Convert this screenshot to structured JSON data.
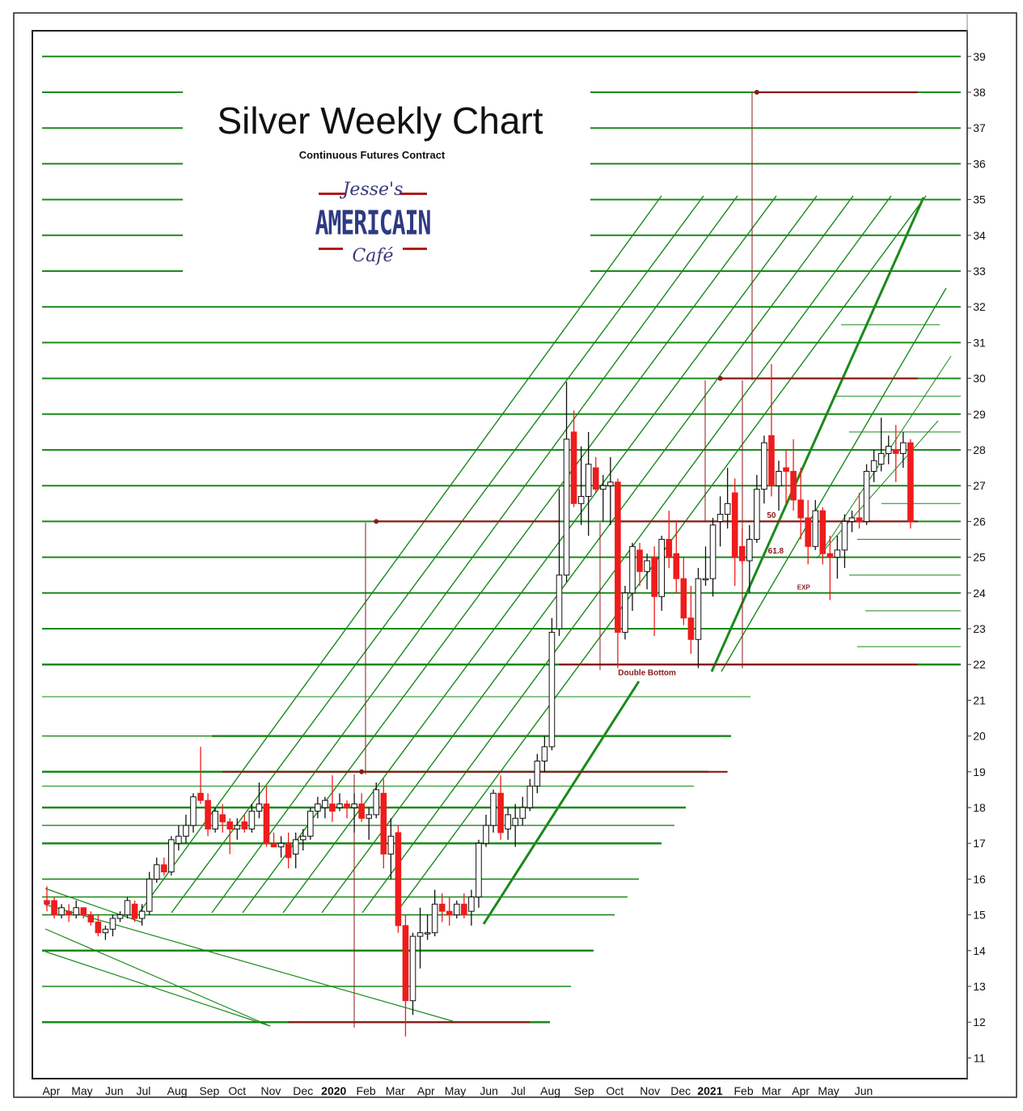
{
  "header": {
    "title": "Silver Weekly Chart",
    "subtitle": "Continuous Futures Contract"
  },
  "logo": {
    "line1": "Jesse's",
    "line2": "AMERICAIN",
    "line3": "Café"
  },
  "colors": {
    "up_candle": "#ffffff",
    "down_candle": "#ee1c1c",
    "trend_lines": "#1a8a1a",
    "key_levels": "#8b1a1a"
  },
  "chart_data": {
    "type": "candlestick",
    "title": "Silver Weekly Chart",
    "subtitle": "Continuous Futures Contract",
    "ylim": [
      10.6,
      39.6
    ],
    "y_ticks": [
      11,
      12,
      13,
      14,
      15,
      16,
      17,
      18,
      19,
      20,
      21,
      22,
      23,
      24,
      25,
      26,
      27,
      28,
      29,
      30,
      31,
      32,
      33,
      34,
      35,
      36,
      37,
      38,
      39
    ],
    "x_tick_labels": [
      {
        "label": "Apr",
        "week": 0.6
      },
      {
        "label": "May",
        "week": 4.8
      },
      {
        "label": "Jun",
        "week": 9.2
      },
      {
        "label": "Jul",
        "week": 13.2
      },
      {
        "label": "Aug",
        "week": 17.8
      },
      {
        "label": "Sep",
        "week": 22.2
      },
      {
        "label": "Oct",
        "week": 26.0
      },
      {
        "label": "Nov",
        "week": 30.6
      },
      {
        "label": "Dec",
        "week": 35.0
      },
      {
        "label": "2020",
        "week": 39.2,
        "bold": true
      },
      {
        "label": "Feb",
        "week": 43.6
      },
      {
        "label": "Mar",
        "week": 47.6
      },
      {
        "label": "Apr",
        "week": 51.8
      },
      {
        "label": "May",
        "week": 55.8
      },
      {
        "label": "Jun",
        "week": 60.4
      },
      {
        "label": "Jul",
        "week": 64.4
      },
      {
        "label": "Aug",
        "week": 68.8
      },
      {
        "label": "Sep",
        "week": 73.4
      },
      {
        "label": "Oct",
        "week": 77.6
      },
      {
        "label": "Nov",
        "week": 82.4
      },
      {
        "label": "Dec",
        "week": 86.6
      },
      {
        "label": "2021",
        "week": 90.6,
        "bold": true
      },
      {
        "label": "Feb",
        "week": 95.2
      },
      {
        "label": "Mar",
        "week": 99.0
      },
      {
        "label": "Apr",
        "week": 103.0
      },
      {
        "label": "May",
        "week": 106.8
      },
      {
        "label": "Jun",
        "week": 111.6
      }
    ],
    "candles": [
      {
        "o": 15.4,
        "h": 15.8,
        "l": 15.1,
        "c": 15.3
      },
      {
        "o": 15.4,
        "h": 15.5,
        "l": 14.9,
        "c": 15.0
      },
      {
        "o": 15.0,
        "h": 15.3,
        "l": 14.9,
        "c": 15.2
      },
      {
        "o": 15.1,
        "h": 15.3,
        "l": 14.8,
        "c": 15.0
      },
      {
        "o": 15.0,
        "h": 15.4,
        "l": 14.9,
        "c": 15.2
      },
      {
        "o": 15.2,
        "h": 15.2,
        "l": 14.9,
        "c": 15.0
      },
      {
        "o": 15.0,
        "h": 15.1,
        "l": 14.7,
        "c": 14.8
      },
      {
        "o": 14.8,
        "h": 15.0,
        "l": 14.4,
        "c": 14.5
      },
      {
        "o": 14.5,
        "h": 14.7,
        "l": 14.3,
        "c": 14.6
      },
      {
        "o": 14.6,
        "h": 15.0,
        "l": 14.4,
        "c": 14.9
      },
      {
        "o": 14.9,
        "h": 15.1,
        "l": 14.8,
        "c": 15.0
      },
      {
        "o": 15.0,
        "h": 15.5,
        "l": 14.9,
        "c": 15.4
      },
      {
        "o": 15.3,
        "h": 15.4,
        "l": 14.8,
        "c": 14.9
      },
      {
        "o": 14.9,
        "h": 15.3,
        "l": 14.7,
        "c": 15.1
      },
      {
        "o": 15.1,
        "h": 16.2,
        "l": 15.0,
        "c": 16.0
      },
      {
        "o": 16.0,
        "h": 16.6,
        "l": 15.9,
        "c": 16.4
      },
      {
        "o": 16.4,
        "h": 16.6,
        "l": 16.1,
        "c": 16.2
      },
      {
        "o": 16.2,
        "h": 17.2,
        "l": 16.1,
        "c": 17.1
      },
      {
        "o": 17.0,
        "h": 17.5,
        "l": 16.8,
        "c": 17.2
      },
      {
        "o": 17.2,
        "h": 17.8,
        "l": 17.0,
        "c": 17.5
      },
      {
        "o": 17.5,
        "h": 18.4,
        "l": 17.3,
        "c": 18.3
      },
      {
        "o": 18.4,
        "h": 19.7,
        "l": 18.1,
        "c": 18.2
      },
      {
        "o": 18.2,
        "h": 18.4,
        "l": 17.2,
        "c": 17.4
      },
      {
        "o": 17.4,
        "h": 18.0,
        "l": 17.3,
        "c": 17.9
      },
      {
        "o": 17.8,
        "h": 18.1,
        "l": 17.3,
        "c": 17.6
      },
      {
        "o": 17.6,
        "h": 17.7,
        "l": 16.7,
        "c": 17.4
      },
      {
        "o": 17.4,
        "h": 17.7,
        "l": 17.1,
        "c": 17.5
      },
      {
        "o": 17.6,
        "h": 17.8,
        "l": 17.3,
        "c": 17.4
      },
      {
        "o": 17.4,
        "h": 18.1,
        "l": 17.3,
        "c": 17.9
      },
      {
        "o": 17.9,
        "h": 18.7,
        "l": 17.7,
        "c": 18.1
      },
      {
        "o": 18.1,
        "h": 18.6,
        "l": 16.9,
        "c": 17.0
      },
      {
        "o": 17.0,
        "h": 17.3,
        "l": 16.9,
        "c": 16.9
      },
      {
        "o": 16.9,
        "h": 17.2,
        "l": 16.6,
        "c": 17.0
      },
      {
        "o": 17.0,
        "h": 17.3,
        "l": 16.3,
        "c": 16.6
      },
      {
        "o": 16.7,
        "h": 17.3,
        "l": 16.3,
        "c": 17.1
      },
      {
        "o": 17.1,
        "h": 17.4,
        "l": 16.8,
        "c": 17.2
      },
      {
        "o": 17.2,
        "h": 18.0,
        "l": 17.1,
        "c": 17.9
      },
      {
        "o": 17.9,
        "h": 18.3,
        "l": 17.7,
        "c": 18.1
      },
      {
        "o": 18.0,
        "h": 18.3,
        "l": 17.7,
        "c": 18.2
      },
      {
        "o": 18.1,
        "h": 18.9,
        "l": 17.6,
        "c": 17.9
      },
      {
        "o": 18.0,
        "h": 18.4,
        "l": 17.9,
        "c": 18.1
      },
      {
        "o": 18.1,
        "h": 18.2,
        "l": 17.7,
        "c": 18.0
      },
      {
        "o": 18.0,
        "h": 18.4,
        "l": 17.3,
        "c": 18.1
      },
      {
        "o": 18.1,
        "h": 18.4,
        "l": 17.6,
        "c": 17.7
      },
      {
        "o": 17.7,
        "h": 18.0,
        "l": 17.1,
        "c": 17.8
      },
      {
        "o": 17.8,
        "h": 18.7,
        "l": 17.7,
        "c": 18.5
      },
      {
        "o": 18.4,
        "h": 18.8,
        "l": 16.3,
        "c": 16.7
      },
      {
        "o": 16.7,
        "h": 17.7,
        "l": 16.0,
        "c": 17.2
      },
      {
        "o": 17.3,
        "h": 17.5,
        "l": 14.5,
        "c": 14.7
      },
      {
        "o": 14.7,
        "h": 15.0,
        "l": 11.6,
        "c": 12.6
      },
      {
        "o": 12.6,
        "h": 14.5,
        "l": 12.2,
        "c": 14.4
      },
      {
        "o": 14.4,
        "h": 15.2,
        "l": 13.5,
        "c": 14.5
      },
      {
        "o": 14.5,
        "h": 15.0,
        "l": 14.3,
        "c": 14.5
      },
      {
        "o": 14.5,
        "h": 15.7,
        "l": 14.4,
        "c": 15.3
      },
      {
        "o": 15.3,
        "h": 15.6,
        "l": 14.8,
        "c": 15.1
      },
      {
        "o": 15.1,
        "h": 15.5,
        "l": 14.7,
        "c": 15.0
      },
      {
        "o": 15.0,
        "h": 15.4,
        "l": 14.9,
        "c": 15.3
      },
      {
        "o": 15.3,
        "h": 15.6,
        "l": 14.9,
        "c": 15.0
      },
      {
        "o": 15.1,
        "h": 15.7,
        "l": 14.7,
        "c": 15.5
      },
      {
        "o": 15.5,
        "h": 17.1,
        "l": 15.2,
        "c": 17.0
      },
      {
        "o": 17.0,
        "h": 17.8,
        "l": 16.9,
        "c": 17.5
      },
      {
        "o": 17.5,
        "h": 18.5,
        "l": 17.3,
        "c": 18.4
      },
      {
        "o": 18.4,
        "h": 18.9,
        "l": 17.1,
        "c": 17.3
      },
      {
        "o": 17.4,
        "h": 18.0,
        "l": 17.1,
        "c": 17.8
      },
      {
        "o": 17.5,
        "h": 18.1,
        "l": 16.9,
        "c": 17.7
      },
      {
        "o": 17.7,
        "h": 18.3,
        "l": 17.5,
        "c": 18.0
      },
      {
        "o": 18.0,
        "h": 18.8,
        "l": 17.9,
        "c": 18.6
      },
      {
        "o": 18.6,
        "h": 19.5,
        "l": 18.4,
        "c": 19.3
      },
      {
        "o": 19.3,
        "h": 20.0,
        "l": 19.0,
        "c": 19.7
      },
      {
        "o": 19.7,
        "h": 23.3,
        "l": 19.6,
        "c": 22.9
      },
      {
        "o": 23.0,
        "h": 26.9,
        "l": 22.8,
        "c": 24.5
      },
      {
        "o": 24.5,
        "h": 29.9,
        "l": 24.3,
        "c": 28.3
      },
      {
        "o": 28.5,
        "h": 29.1,
        "l": 26.4,
        "c": 26.5
      },
      {
        "o": 26.5,
        "h": 28.1,
        "l": 25.9,
        "c": 26.7
      },
      {
        "o": 26.7,
        "h": 28.5,
        "l": 25.6,
        "c": 27.6
      },
      {
        "o": 27.5,
        "h": 27.8,
        "l": 26.8,
        "c": 26.9
      },
      {
        "o": 26.9,
        "h": 27.3,
        "l": 26.0,
        "c": 27.0
      },
      {
        "o": 27.0,
        "h": 27.8,
        "l": 25.9,
        "c": 27.1
      },
      {
        "o": 27.1,
        "h": 27.2,
        "l": 21.9,
        "c": 22.9
      },
      {
        "o": 22.9,
        "h": 24.2,
        "l": 22.7,
        "c": 24.0
      },
      {
        "o": 24.0,
        "h": 25.4,
        "l": 23.5,
        "c": 25.3
      },
      {
        "o": 25.2,
        "h": 25.4,
        "l": 24.2,
        "c": 24.6
      },
      {
        "o": 24.6,
        "h": 25.1,
        "l": 24.1,
        "c": 24.9
      },
      {
        "o": 25.0,
        "h": 25.3,
        "l": 22.8,
        "c": 23.9
      },
      {
        "o": 23.9,
        "h": 25.6,
        "l": 23.5,
        "c": 25.5
      },
      {
        "o": 25.5,
        "h": 26.3,
        "l": 24.7,
        "c": 25.0
      },
      {
        "o": 25.1,
        "h": 26.0,
        "l": 24.0,
        "c": 24.4
      },
      {
        "o": 24.4,
        "h": 25.0,
        "l": 23.1,
        "c": 23.3
      },
      {
        "o": 23.3,
        "h": 24.2,
        "l": 22.3,
        "c": 22.7
      },
      {
        "o": 22.7,
        "h": 24.7,
        "l": 21.9,
        "c": 24.4
      },
      {
        "o": 24.4,
        "h": 25.3,
        "l": 24.2,
        "c": 24.4
      },
      {
        "o": 24.4,
        "h": 26.1,
        "l": 23.9,
        "c": 25.9
      },
      {
        "o": 26.0,
        "h": 26.7,
        "l": 25.3,
        "c": 26.2
      },
      {
        "o": 26.2,
        "h": 27.5,
        "l": 25.8,
        "c": 26.5
      },
      {
        "o": 26.8,
        "h": 27.2,
        "l": 24.2,
        "c": 25.0
      },
      {
        "o": 25.3,
        "h": 25.8,
        "l": 24.8,
        "c": 24.9
      },
      {
        "o": 24.9,
        "h": 25.9,
        "l": 24.0,
        "c": 25.5
      },
      {
        "o": 25.5,
        "h": 27.3,
        "l": 25.4,
        "c": 26.9
      },
      {
        "o": 26.9,
        "h": 28.4,
        "l": 26.5,
        "c": 28.2
      },
      {
        "o": 28.4,
        "h": 30.4,
        "l": 26.7,
        "c": 27.0
      },
      {
        "o": 27.0,
        "h": 27.7,
        "l": 26.3,
        "c": 27.4
      },
      {
        "o": 27.5,
        "h": 28.0,
        "l": 26.5,
        "c": 27.4
      },
      {
        "o": 27.4,
        "h": 28.3,
        "l": 26.3,
        "c": 26.6
      },
      {
        "o": 26.6,
        "h": 27.5,
        "l": 25.5,
        "c": 26.1
      },
      {
        "o": 26.1,
        "h": 26.6,
        "l": 24.8,
        "c": 25.3
      },
      {
        "o": 25.3,
        "h": 26.6,
        "l": 25.2,
        "c": 26.3
      },
      {
        "o": 26.3,
        "h": 26.4,
        "l": 24.8,
        "c": 25.1
      },
      {
        "o": 25.1,
        "h": 25.6,
        "l": 23.8,
        "c": 25.0
      },
      {
        "o": 25.0,
        "h": 25.6,
        "l": 24.4,
        "c": 25.2
      },
      {
        "o": 25.2,
        "h": 26.2,
        "l": 24.7,
        "c": 26.0
      },
      {
        "o": 26.0,
        "h": 26.3,
        "l": 25.7,
        "c": 26.1
      },
      {
        "o": 26.1,
        "h": 26.8,
        "l": 25.8,
        "c": 26.0
      },
      {
        "o": 26.0,
        "h": 27.6,
        "l": 25.9,
        "c": 27.4
      },
      {
        "o": 27.4,
        "h": 28.0,
        "l": 27.1,
        "c": 27.7
      },
      {
        "o": 27.6,
        "h": 28.9,
        "l": 27.4,
        "c": 27.9
      },
      {
        "o": 27.9,
        "h": 28.4,
        "l": 27.6,
        "c": 28.1
      },
      {
        "o": 28.0,
        "h": 28.7,
        "l": 27.1,
        "c": 27.9
      },
      {
        "o": 27.9,
        "h": 28.5,
        "l": 27.5,
        "c": 28.2
      },
      {
        "o": 28.2,
        "h": 28.3,
        "l": 25.8,
        "c": 26.0
      }
    ],
    "annotations": [
      {
        "text": "Double Bottom",
        "week": 82.0,
        "y": 21.7
      },
      {
        "text": "50",
        "week": 99.0,
        "y": 26.1
      },
      {
        "text": "61.8",
        "week": 99.6,
        "y": 25.1
      },
      {
        "text": "EXP",
        "week": 103.4,
        "y": 24.1
      }
    ],
    "key_levels": [
      {
        "y": 38.0,
        "from_week": 97.0,
        "to_week": 119.0,
        "marker_week": 97.0
      },
      {
        "y": 30.0,
        "from_week": 92.0,
        "to_week": 119.0,
        "marker_week": 92.0
      },
      {
        "y": 26.0,
        "from_week": 45.0,
        "to_week": 70.0,
        "marker_week": 45.0
      },
      {
        "y": 26.0,
        "from_week": 78.0,
        "to_week": 119.0
      },
      {
        "y": 19.0,
        "from_week": 24.0,
        "to_week": 93.0,
        "marker_week": 43.0
      },
      {
        "y": 22.0,
        "from_week": 70.0,
        "to_week": 119.0
      },
      {
        "y": 12.0,
        "from_week": 33.0,
        "to_week": 66.0
      }
    ]
  }
}
